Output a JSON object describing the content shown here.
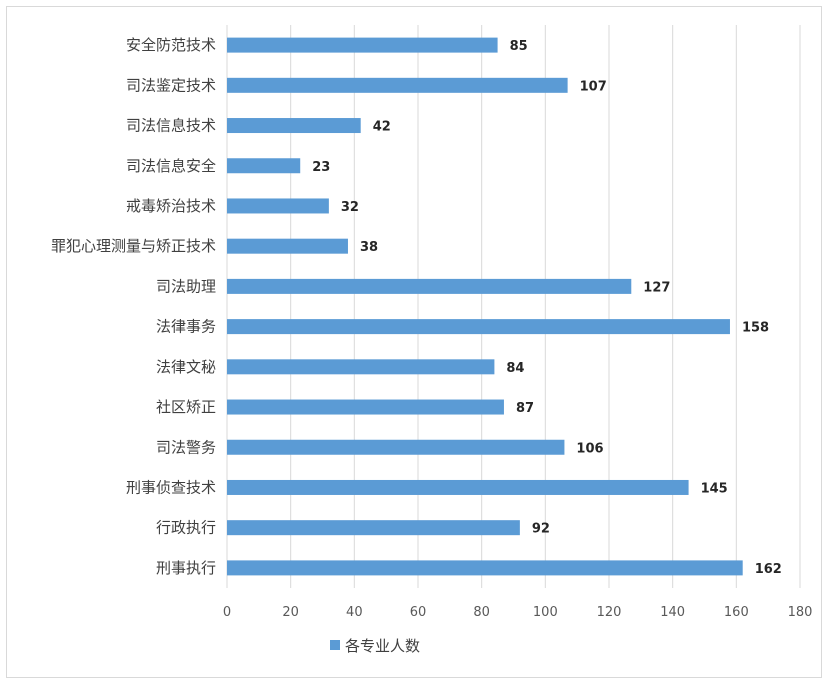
{
  "chart_data": {
    "type": "bar",
    "orientation": "horizontal",
    "categories": [
      "安全防范技术",
      "司法鉴定技术",
      "司法信息技术",
      "司法信息安全",
      "戒毒矫治技术",
      "罪犯心理测量与矫正技术",
      "司法助理",
      "法律事务",
      "法律文秘",
      "社区矫正",
      "司法警务",
      "刑事侦查技术",
      "行政执行",
      "刑事执行"
    ],
    "series": [
      {
        "name": "各专业人数",
        "values": [
          85,
          107,
          42,
          23,
          32,
          38,
          127,
          158,
          84,
          87,
          106,
          145,
          92,
          162
        ],
        "color": "#5b9bd5"
      }
    ],
    "xlim": [
      0,
      180
    ],
    "xticks": [
      0,
      20,
      40,
      60,
      80,
      100,
      120,
      140,
      160,
      180
    ],
    "grid": "vertical",
    "legend_position": "bottom",
    "data_labels": true
  }
}
